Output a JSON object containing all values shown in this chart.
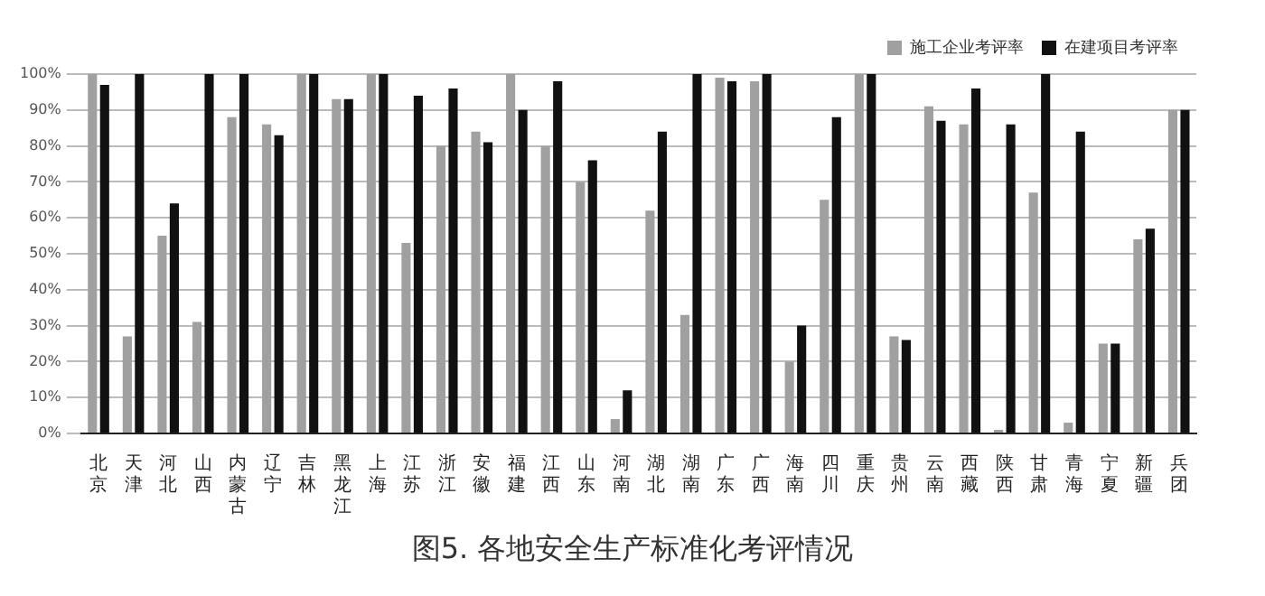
{
  "chart_data": {
    "type": "bar",
    "title": "图5. 各地安全生产标准化考评情况",
    "categories": [
      "北京",
      "天津",
      "河北",
      "山西",
      "内蒙古",
      "辽宁",
      "吉林",
      "黑龙江",
      "上海",
      "江苏",
      "浙江",
      "安徽",
      "福建",
      "江西",
      "山东",
      "河南",
      "湖北",
      "湖南",
      "广东",
      "广西",
      "海南",
      "四川",
      "重庆",
      "贵州",
      "云南",
      "西藏",
      "陕西",
      "甘肃",
      "青海",
      "宁夏",
      "新疆",
      "兵团"
    ],
    "series": [
      {
        "name": "施工企业考评率",
        "color": "#a0a0a0",
        "values": [
          100,
          27,
          55,
          31,
          88,
          86,
          100,
          93,
          100,
          53,
          80,
          84,
          100,
          80,
          70,
          4,
          62,
          33,
          99,
          98,
          20,
          65,
          100,
          27,
          91,
          86,
          1,
          67,
          3,
          25,
          54,
          90
        ]
      },
      {
        "name": "在建项目考评率",
        "color": "#111111",
        "values": [
          97,
          100,
          64,
          100,
          100,
          83,
          100,
          93,
          100,
          94,
          96,
          81,
          90,
          98,
          76,
          12,
          84,
          100,
          98,
          100,
          30,
          88,
          100,
          26,
          87,
          96,
          86,
          100,
          84,
          25,
          57,
          90
        ]
      }
    ],
    "ylim": [
      0,
      100
    ],
    "yticks": [
      {
        "value": 0,
        "label": "0%"
      },
      {
        "value": 10,
        "label": "10%"
      },
      {
        "value": 20,
        "label": "20%"
      },
      {
        "value": 30,
        "label": "30%"
      },
      {
        "value": 40,
        "label": "40%"
      },
      {
        "value": 50,
        "label": "50%"
      },
      {
        "value": 60,
        "label": "60%"
      },
      {
        "value": 70,
        "label": "70%"
      },
      {
        "value": 80,
        "label": "80%"
      },
      {
        "value": 90,
        "label": "90%"
      },
      {
        "value": 100,
        "label": "100%"
      }
    ],
    "grid": "y",
    "legend": "top right"
  }
}
